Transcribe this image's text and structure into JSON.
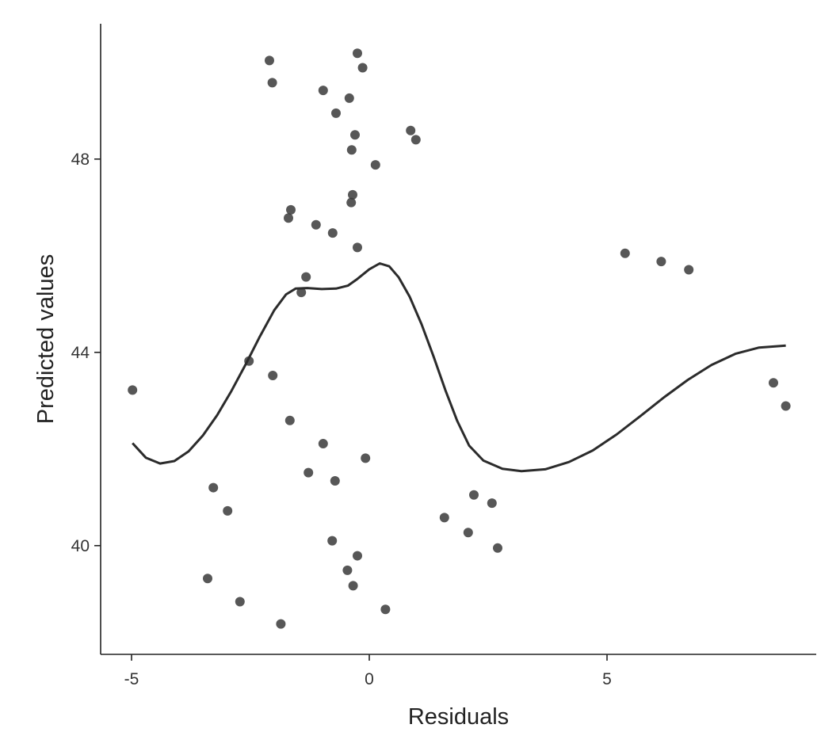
{
  "chart_data": {
    "type": "scatter",
    "title": "",
    "xlabel": "Residuals",
    "ylabel": "Predicted values",
    "xlim": [
      -5.65,
      9.4
    ],
    "ylim": [
      37.75,
      50.8
    ],
    "xticks": [
      {
        "value": -5,
        "label": "-5"
      },
      {
        "value": 0,
        "label": "0"
      },
      {
        "value": 5,
        "label": "5"
      }
    ],
    "yticks": [
      {
        "value": 40,
        "label": "40"
      },
      {
        "value": 44,
        "label": "44"
      },
      {
        "value": 48,
        "label": "48"
      }
    ],
    "grid": false,
    "colors": {
      "point": "#3a3a3a",
      "line": "#2b2b2b",
      "axis": "#222222"
    },
    "points": [
      {
        "x": -4.98,
        "y": 43.22
      },
      {
        "x": -2.1,
        "y": 50.04
      },
      {
        "x": -2.04,
        "y": 49.58
      },
      {
        "x": -0.97,
        "y": 49.42
      },
      {
        "x": -0.42,
        "y": 49.26
      },
      {
        "x": -0.7,
        "y": 48.95
      },
      {
        "x": -0.25,
        "y": 50.19
      },
      {
        "x": -0.14,
        "y": 49.89
      },
      {
        "x": 0.87,
        "y": 48.59
      },
      {
        "x": 0.98,
        "y": 48.4
      },
      {
        "x": -0.3,
        "y": 48.5
      },
      {
        "x": -0.37,
        "y": 48.19
      },
      {
        "x": 0.13,
        "y": 47.88
      },
      {
        "x": -0.35,
        "y": 47.26
      },
      {
        "x": -0.38,
        "y": 47.1
      },
      {
        "x": -1.65,
        "y": 46.95
      },
      {
        "x": -1.7,
        "y": 46.78
      },
      {
        "x": -1.12,
        "y": 46.64
      },
      {
        "x": -0.77,
        "y": 46.47
      },
      {
        "x": -0.25,
        "y": 46.17
      },
      {
        "x": -1.33,
        "y": 45.56
      },
      {
        "x": -1.43,
        "y": 45.24
      },
      {
        "x": 5.38,
        "y": 46.05
      },
      {
        "x": 6.14,
        "y": 45.88
      },
      {
        "x": 6.72,
        "y": 45.71
      },
      {
        "x": -2.53,
        "y": 43.82
      },
      {
        "x": -2.03,
        "y": 43.52
      },
      {
        "x": 8.5,
        "y": 43.37
      },
      {
        "x": 8.76,
        "y": 42.89
      },
      {
        "x": -1.67,
        "y": 42.59
      },
      {
        "x": -0.97,
        "y": 42.11
      },
      {
        "x": -0.08,
        "y": 41.81
      },
      {
        "x": -1.28,
        "y": 41.51
      },
      {
        "x": -0.72,
        "y": 41.34
      },
      {
        "x": -3.28,
        "y": 41.2
      },
      {
        "x": -2.98,
        "y": 40.72
      },
      {
        "x": 2.2,
        "y": 41.05
      },
      {
        "x": 2.58,
        "y": 40.88
      },
      {
        "x": 1.58,
        "y": 40.58
      },
      {
        "x": 2.08,
        "y": 40.27
      },
      {
        "x": 2.7,
        "y": 39.95
      },
      {
        "x": -0.78,
        "y": 40.1
      },
      {
        "x": -0.25,
        "y": 39.79
      },
      {
        "x": -0.46,
        "y": 39.49
      },
      {
        "x": -3.4,
        "y": 39.32
      },
      {
        "x": -0.34,
        "y": 39.17
      },
      {
        "x": -2.72,
        "y": 38.84
      },
      {
        "x": 0.34,
        "y": 38.68
      },
      {
        "x": -1.86,
        "y": 38.38
      }
    ],
    "smooth": [
      {
        "x": -4.98,
        "y": 42.12
      },
      {
        "x": -4.7,
        "y": 41.82
      },
      {
        "x": -4.4,
        "y": 41.7
      },
      {
        "x": -4.1,
        "y": 41.75
      },
      {
        "x": -3.8,
        "y": 41.95
      },
      {
        "x": -3.5,
        "y": 42.28
      },
      {
        "x": -3.2,
        "y": 42.7
      },
      {
        "x": -2.9,
        "y": 43.2
      },
      {
        "x": -2.6,
        "y": 43.75
      },
      {
        "x": -2.3,
        "y": 44.33
      },
      {
        "x": -2.0,
        "y": 44.87
      },
      {
        "x": -1.75,
        "y": 45.2
      },
      {
        "x": -1.55,
        "y": 45.32
      },
      {
        "x": -1.3,
        "y": 45.33
      },
      {
        "x": -1.0,
        "y": 45.31
      },
      {
        "x": -0.7,
        "y": 45.32
      },
      {
        "x": -0.45,
        "y": 45.38
      },
      {
        "x": -0.25,
        "y": 45.52
      },
      {
        "x": 0.0,
        "y": 45.72
      },
      {
        "x": 0.22,
        "y": 45.84
      },
      {
        "x": 0.42,
        "y": 45.78
      },
      {
        "x": 0.62,
        "y": 45.55
      },
      {
        "x": 0.85,
        "y": 45.15
      },
      {
        "x": 1.1,
        "y": 44.58
      },
      {
        "x": 1.35,
        "y": 43.92
      },
      {
        "x": 1.6,
        "y": 43.22
      },
      {
        "x": 1.85,
        "y": 42.58
      },
      {
        "x": 2.1,
        "y": 42.07
      },
      {
        "x": 2.4,
        "y": 41.76
      },
      {
        "x": 2.8,
        "y": 41.59
      },
      {
        "x": 3.2,
        "y": 41.54
      },
      {
        "x": 3.7,
        "y": 41.58
      },
      {
        "x": 4.2,
        "y": 41.73
      },
      {
        "x": 4.7,
        "y": 41.97
      },
      {
        "x": 5.2,
        "y": 42.3
      },
      {
        "x": 5.7,
        "y": 42.68
      },
      {
        "x": 6.2,
        "y": 43.07
      },
      {
        "x": 6.7,
        "y": 43.43
      },
      {
        "x": 7.2,
        "y": 43.74
      },
      {
        "x": 7.7,
        "y": 43.97
      },
      {
        "x": 8.2,
        "y": 44.1
      },
      {
        "x": 8.76,
        "y": 44.14
      }
    ]
  }
}
